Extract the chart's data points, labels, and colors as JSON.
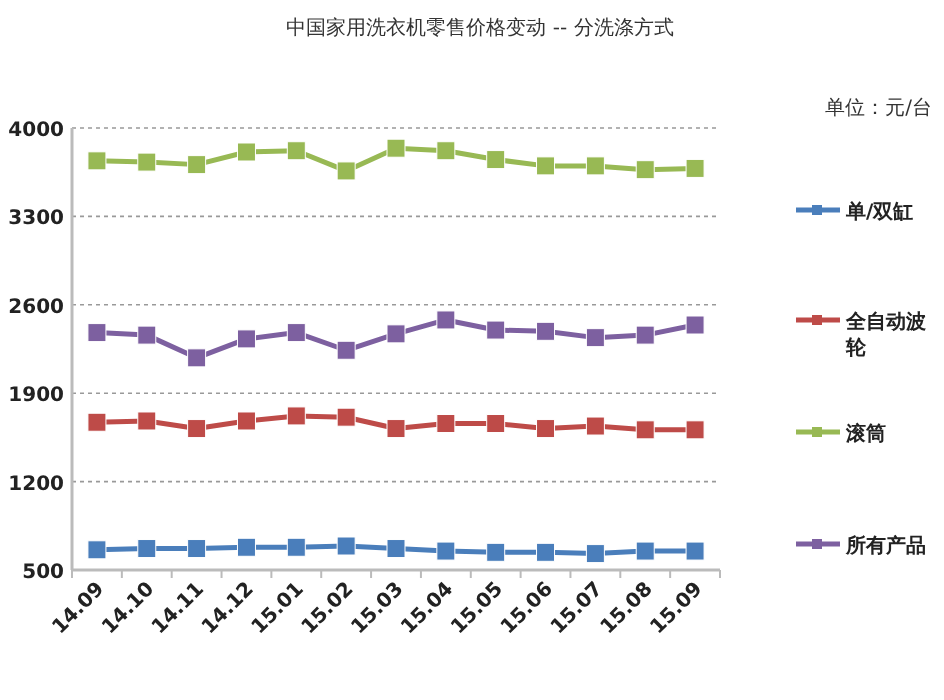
{
  "chart_data": {
    "type": "line",
    "title": "中国家用洗衣机零售价格变动  --  分洗涤方式",
    "annotations": [
      "单位：元/台"
    ],
    "categories": [
      "14.09",
      "14.10",
      "14.11",
      "14.12",
      "15.01",
      "15.02",
      "15.03",
      "15.04",
      "15.05",
      "15.06",
      "15.07",
      "15.08",
      "15.09"
    ],
    "series": [
      {
        "name": "单/双缸",
        "color": "#4a7ebb",
        "values": [
          660,
          670,
          670,
          680,
          680,
          690,
          670,
          650,
          640,
          640,
          630,
          650,
          650
        ]
      },
      {
        "name": "全自动波轮",
        "color": "#be4b48",
        "values": [
          1670,
          1680,
          1620,
          1680,
          1720,
          1710,
          1620,
          1660,
          1660,
          1620,
          1640,
          1610,
          1610
        ]
      },
      {
        "name": "滚筒",
        "color": "#98b954",
        "values": [
          3740,
          3730,
          3710,
          3810,
          3820,
          3660,
          3840,
          3820,
          3750,
          3700,
          3700,
          3670,
          3680
        ]
      },
      {
        "name": "所有产品",
        "color": "#7d60a0",
        "values": [
          2380,
          2360,
          2180,
          2330,
          2380,
          2240,
          2370,
          2480,
          2400,
          2390,
          2340,
          2360,
          2440
        ]
      }
    ],
    "ylim": [
      500,
      4000
    ],
    "yticks": [
      500,
      1200,
      1900,
      2600,
      3300,
      4000
    ],
    "grid": "y",
    "legend": "right",
    "marker": "square",
    "line_style": "solid"
  }
}
